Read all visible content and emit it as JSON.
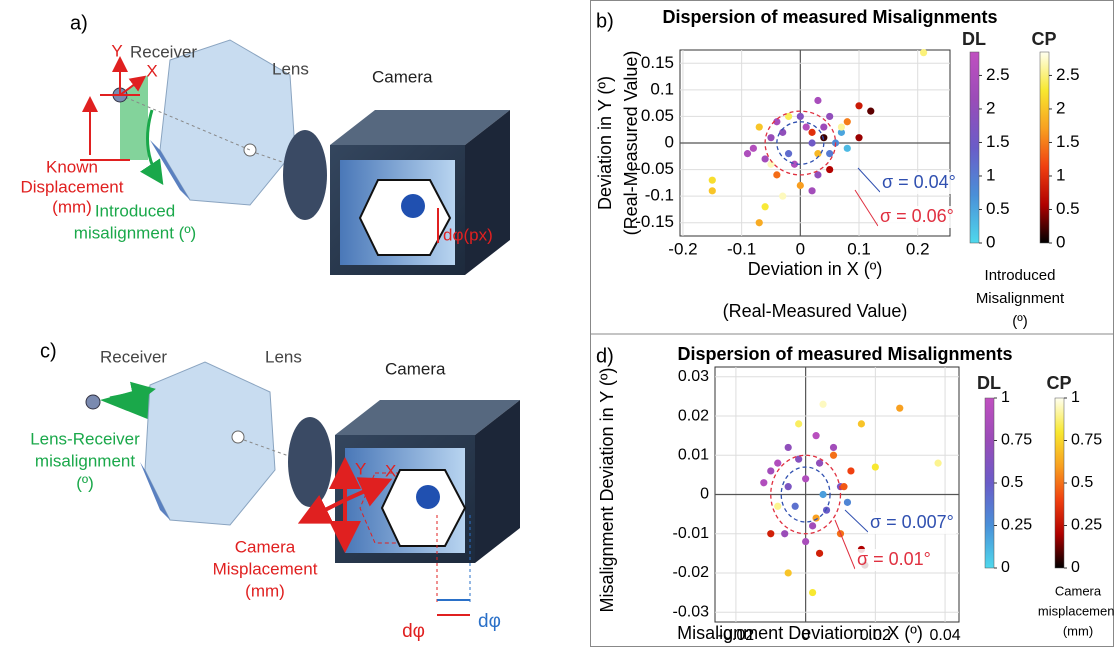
{
  "diagrams": {
    "a": {
      "panel": "a)",
      "labels": [
        "Y",
        "X",
        "Receiver",
        "Lens",
        "Camera",
        "Known",
        "Displacement",
        "(mm)",
        "Introduced",
        "misalignment (º)",
        "dφ(px)"
      ]
    },
    "c": {
      "panel": "c)",
      "labels": [
        "Receiver",
        "Lens",
        "Camera",
        "Lens-Receiver",
        "misalignment",
        "(º)",
        "Y",
        "X",
        "Camera",
        "Misplacement",
        "(mm)",
        "dφ",
        "dφ"
      ]
    }
  },
  "chart_data": [
    {
      "type": "scatter",
      "panel": "b)",
      "title": "Dispersion of measured Misalignments",
      "x_label": [
        "Deviation in X (º)",
        "(Real-Measured Value)"
      ],
      "y_label": [
        "Deviation in Y (º)",
        "(Real-Measured Value)"
      ],
      "xlim": [
        -0.205,
        0.255
      ],
      "xticks": [
        -0.2,
        -0.1,
        0,
        0.1,
        0.2
      ],
      "ylim": [
        -0.175,
        0.175
      ],
      "yticks": [
        -0.15,
        -0.1,
        -0.05,
        0,
        0.05,
        0.1,
        0.15
      ],
      "grid": true,
      "colorbar_label": [
        "Introduced",
        "Misalignment",
        "(º)"
      ],
      "circles": [
        {
          "label": "σ = 0.04°",
          "radius": 0.04,
          "color": "#3050b0"
        },
        {
          "label": "σ = 0.06°",
          "radius": 0.06,
          "color": "#e03040"
        }
      ],
      "series": [
        {
          "name": "DL",
          "colormap": [
            "#4fd8ec",
            "#4a90d8",
            "#6a5cc8",
            "#9a4cb8",
            "#c050c0"
          ],
          "clim": [
            0,
            2.85
          ],
          "cticks": [
            0,
            0.5,
            1,
            1.5,
            2,
            2.5
          ],
          "x": [
            -0.06,
            -0.03,
            -0.01,
            0.02,
            0.04,
            0.05,
            -0.08,
            0.0,
            0.03,
            -0.04,
            0.07,
            0.08,
            0.06,
            -0.02,
            0.01,
            -0.05,
            0.02,
            -0.09,
            0.05,
            0.03
          ],
          "values": [
            -0.03,
            0.02,
            -0.04,
            0.0,
            0.03,
            -0.02,
            -0.01,
            0.05,
            -0.06,
            0.04,
            0.02,
            -0.01,
            0.0,
            -0.02,
            0.03,
            0.01,
            -0.09,
            -0.02,
            0.05,
            0.08
          ],
          "c": [
            2.3,
            2.0,
            2.5,
            1.5,
            2.2,
            1.0,
            2.6,
            1.8,
            2.0,
            2.4,
            0.5,
            0.3,
            0.8,
            1.2,
            2.6,
            2.1,
            2.3,
            2.5,
            2.0,
            2.4
          ]
        },
        {
          "name": "CP",
          "colormap": [
            "#000000",
            "#b00000",
            "#f04010",
            "#f8a020",
            "#f8e830",
            "#fffff0"
          ],
          "clim": [
            0,
            2.85
          ],
          "cticks": [
            0,
            0.5,
            1,
            1.5,
            2,
            2.5
          ],
          "x": [
            0.21,
            0.1,
            0.12,
            0.08,
            -0.07,
            -0.05,
            0.0,
            -0.15,
            -0.15,
            -0.06,
            -0.07,
            0.05,
            0.02,
            -0.02,
            0.03,
            0.07,
            -0.04,
            0.04,
            0.1,
            -0.03
          ],
          "values": [
            0.17,
            0.07,
            0.06,
            0.04,
            0.03,
            -0.04,
            -0.08,
            -0.07,
            -0.09,
            -0.12,
            -0.15,
            -0.05,
            0.02,
            0.05,
            -0.02,
            0.03,
            -0.06,
            0.01,
            0.01,
            -0.1
          ],
          "c": [
            2.5,
            0.8,
            0.3,
            1.5,
            2.0,
            2.7,
            1.7,
            2.2,
            2.0,
            2.3,
            1.8,
            0.6,
            1.0,
            2.4,
            1.9,
            2.6,
            1.4,
            0.2,
            0.5,
            2.7
          ]
        }
      ]
    },
    {
      "type": "scatter",
      "panel": "d)",
      "title": "Dispersion of measured Misalignments",
      "x_label": [
        "Misalignment Deviation in X (º)"
      ],
      "y_label": [
        "Misalignment Deviation in Y (º)"
      ],
      "xlim": [
        -0.026,
        0.044
      ],
      "xticks": [
        -0.02,
        0,
        0.02,
        0.04
      ],
      "ylim": [
        -0.0325,
        0.0325
      ],
      "yticks": [
        -0.03,
        -0.02,
        -0.01,
        0,
        0.01,
        0.02,
        0.03
      ],
      "grid": true,
      "colorbar_label": [
        "Camera",
        "misplacement",
        "(mm)"
      ],
      "circles": [
        {
          "label": "σ = 0.007°",
          "radius": 0.007,
          "color": "#3050b0"
        },
        {
          "label": "σ = 0.01°",
          "radius": 0.01,
          "color": "#e03040"
        }
      ],
      "series": [
        {
          "name": "DL",
          "colormap": [
            "#4fd8ec",
            "#4a90d8",
            "#6a5cc8",
            "#9a4cb8",
            "#c050c0"
          ],
          "clim": [
            0,
            1
          ],
          "cticks": [
            0,
            0.25,
            0.5,
            0.75,
            1
          ],
          "x": [
            -0.01,
            -0.005,
            0,
            0.004,
            0.006,
            -0.008,
            -0.003,
            0.01,
            0.002,
            -0.005,
            0.008,
            -0.012,
            0.012,
            0.0,
            0.005,
            -0.006,
            0.003,
            -0.002
          ],
          "values": [
            0.006,
            0.002,
            0.004,
            0.008,
            -0.004,
            0.008,
            -0.003,
            0.002,
            -0.008,
            0.012,
            0.012,
            0.003,
            -0.002,
            -0.012,
            0.0,
            -0.01,
            0.015,
            0.009
          ],
          "c": [
            0.8,
            0.6,
            0.9,
            0.7,
            0.5,
            0.9,
            0.4,
            0.6,
            0.8,
            0.7,
            0.8,
            0.9,
            0.3,
            0.85,
            0.2,
            0.75,
            0.95,
            0.65
          ]
        },
        {
          "name": "CP",
          "colormap": [
            "#000000",
            "#b00000",
            "#f04010",
            "#f8a020",
            "#f8e830",
            "#fffff0"
          ],
          "clim": [
            0,
            1
          ],
          "cticks": [
            0,
            0.25,
            0.5,
            0.75,
            1
          ],
          "x": [
            0.027,
            0.038,
            0.016,
            0.017,
            0.002,
            -0.01,
            -0.008,
            0.013,
            0.008,
            0.005,
            -0.002,
            0.016,
            0.003,
            0.01,
            -0.005,
            0.02,
            0.011,
            0.004
          ],
          "values": [
            0.022,
            0.008,
            0.018,
            -0.018,
            -0.025,
            -0.01,
            -0.003,
            0.006,
            0.01,
            0.023,
            0.018,
            -0.014,
            -0.006,
            -0.01,
            -0.02,
            0.007,
            0.002,
            -0.015
          ],
          "c": [
            0.6,
            0.9,
            0.7,
            0.1,
            0.8,
            0.3,
            0.9,
            0.4,
            0.5,
            0.95,
            0.85,
            0.2,
            0.6,
            0.5,
            0.7,
            0.8,
            0.45,
            0.3
          ]
        }
      ]
    }
  ]
}
